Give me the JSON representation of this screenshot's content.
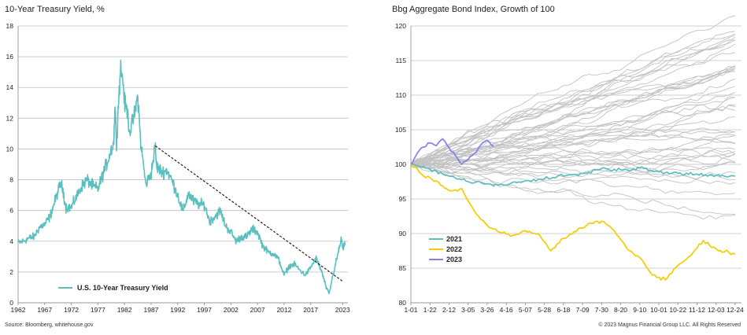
{
  "left_title": "10-Year Treasury Yield, %",
  "right_title": "Bbg Aggregate Bond Index, Growth of 100",
  "source": "Source: Bloomberg, whitehouse.gov",
  "copyright": "© 2023 Magnus Financial Group LLC. All Rights Reserved",
  "colors": {
    "teal": "#5bbfbf",
    "yellow": "#f5cc00",
    "purple": "#8080ee",
    "grey": "#c2c2c2",
    "grid": "#bfbfbf"
  },
  "chart_data": [
    {
      "type": "line",
      "title": "10-Year Treasury Yield, %",
      "xlabel": "",
      "ylabel": "",
      "x_ticks": [
        "1962",
        "1967",
        "1972",
        "1977",
        "1982",
        "1987",
        "1992",
        "1997",
        "2002",
        "2007",
        "2012",
        "2017",
        "2023"
      ],
      "xlim": [
        1962,
        2024
      ],
      "ylim": [
        0,
        18
      ],
      "y_ticks": [
        0,
        2,
        4,
        6,
        8,
        10,
        12,
        14,
        16,
        18
      ],
      "grid": true,
      "legend": {
        "placement": "bottom-left",
        "entries": [
          "U.S. 10-Year Treasury Yield"
        ]
      },
      "series": [
        {
          "name": "U.S. 10-Year Treasury Yield",
          "color": "#5bbfbf",
          "x": [
            1962,
            1963,
            1964,
            1965,
            1966,
            1967,
            1968,
            1969,
            1970,
            1970.5,
            1971,
            1972,
            1973,
            1974,
            1975,
            1976,
            1977,
            1978,
            1979,
            1980,
            1980.2,
            1980.5,
            1981,
            1981.3,
            1981.8,
            1982,
            1982.5,
            1983,
            1984,
            1984.5,
            1985,
            1986,
            1987,
            1987.8,
            1988,
            1989,
            1990,
            1991,
            1992,
            1993,
            1994,
            1995,
            1996,
            1997,
            1998,
            1999,
            2000,
            2001,
            2002,
            2003,
            2004,
            2005,
            2006,
            2007,
            2008,
            2009,
            2010,
            2011,
            2012,
            2013,
            2014,
            2015,
            2016,
            2017,
            2018,
            2019,
            2020,
            2020.5,
            2021,
            2022,
            2022.8,
            2023,
            2023.5
          ],
          "y": [
            3.9,
            4.0,
            4.2,
            4.3,
            4.9,
            5.1,
            5.6,
            6.7,
            7.8,
            7.2,
            6.2,
            6.2,
            6.9,
            7.6,
            8.0,
            7.6,
            7.4,
            8.4,
            9.4,
            10.5,
            12.8,
            10.5,
            13.9,
            15.3,
            14.2,
            13.0,
            12.5,
            11.1,
            12.4,
            13.5,
            10.6,
            7.7,
            8.4,
            10.2,
            8.9,
            8.5,
            8.6,
            7.9,
            7.0,
            5.9,
            7.1,
            6.6,
            6.4,
            6.4,
            5.3,
            5.6,
            6.0,
            5.0,
            4.6,
            4.0,
            4.3,
            4.3,
            4.8,
            4.6,
            3.7,
            3.3,
            3.2,
            2.8,
            1.8,
            2.4,
            2.5,
            2.1,
            1.8,
            2.3,
            2.9,
            2.1,
            0.9,
            0.6,
            1.5,
            3.0,
            4.2,
            3.5,
            3.8
          ]
        }
      ],
      "annotation": {
        "type": "dashed-trendline",
        "from": [
          1987.8,
          10.2
        ],
        "to": [
          2023.0,
          1.4
        ]
      }
    },
    {
      "type": "line",
      "title": "Bbg Aggregate Bond Index, Growth of 100",
      "xlabel": "",
      "ylabel": "",
      "x_ticks": [
        "1-01",
        "1-22",
        "2-12",
        "3-05",
        "3-26",
        "4-16",
        "5-07",
        "5-28",
        "6-18",
        "7-09",
        "7-30",
        "8-20",
        "9-10",
        "10-01",
        "10-22",
        "11-12",
        "12-03",
        "12-24"
      ],
      "ylim": [
        80,
        120
      ],
      "y_ticks": [
        80,
        85,
        90,
        95,
        100,
        105,
        110,
        115,
        120
      ],
      "grid": true,
      "legend": {
        "placement": "bottom-left",
        "entries": [
          "2021",
          "2022",
          "2023"
        ]
      },
      "series": [
        {
          "name": "2021",
          "color": "#5bbfbf",
          "x": [
            0,
            3,
            6,
            9,
            12,
            15,
            18,
            21,
            24,
            27,
            30,
            33,
            36,
            39,
            42,
            45,
            48,
            51
          ],
          "values": [
            100,
            99.3,
            98.3,
            97.5,
            97.2,
            97.0,
            97.6,
            97.9,
            98.3,
            98.7,
            99.4,
            99.2,
            99.5,
            98.9,
            98.7,
            98.6,
            98.4,
            98.3
          ]
        },
        {
          "name": "2022",
          "color": "#f5cc00",
          "x": [
            0,
            2,
            4,
            6,
            8,
            10,
            12,
            14,
            16,
            18,
            20,
            22,
            24,
            26,
            28,
            30,
            32,
            34,
            36,
            38,
            40,
            41,
            42,
            44,
            46,
            48,
            50,
            51
          ],
          "values": [
            100,
            98.3,
            97.6,
            96.2,
            96.5,
            93.2,
            91.2,
            90.2,
            89.7,
            90.4,
            90.0,
            87.5,
            89.3,
            90.3,
            91.5,
            91.8,
            90.4,
            87.8,
            86.5,
            84.0,
            83.3,
            84.2,
            85.4,
            86.8,
            89.0,
            87.8,
            87.3,
            87.0
          ]
        },
        {
          "name": "2023",
          "color": "#8080ee",
          "x": [
            0,
            1,
            2,
            3,
            4,
            5,
            6,
            7,
            8,
            9,
            10,
            11,
            12,
            13
          ],
          "values": [
            100,
            101.6,
            102.5,
            103.1,
            102.7,
            103.7,
            102.4,
            101.3,
            100.0,
            100.7,
            101.6,
            102.8,
            103.5,
            102.6
          ]
        }
      ],
      "historical_years": {
        "count": 45,
        "color": "#c2c2c2",
        "description": ""
      }
    }
  ]
}
